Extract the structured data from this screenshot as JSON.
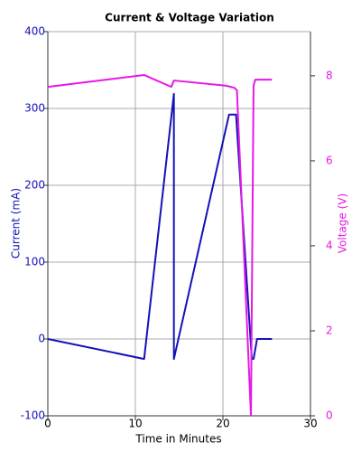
{
  "chart_data": {
    "type": "line",
    "title": "Current & Voltage Variation",
    "xlabel": "Time in Minutes",
    "ylabel": "Current (mA)",
    "y2label": "Voltage (V)",
    "xlim": [
      0,
      30
    ],
    "xticks": [
      0,
      10,
      20,
      30
    ],
    "ylim": [
      -100,
      400
    ],
    "yticks": [
      -100,
      0,
      100,
      200,
      300,
      400
    ],
    "y2lim": [
      0,
      9.04
    ],
    "y2ticks": [
      0,
      2,
      4,
      6,
      8
    ],
    "grid": true,
    "series": [
      {
        "name": "Current",
        "color": "#1212b8",
        "axis": "y",
        "x": [
          0,
          11,
          14.4,
          14.4,
          20.7,
          21.5,
          23.3,
          23.5,
          23.9,
          25.6
        ],
        "values": [
          0,
          -26,
          319,
          -26,
          292,
          292,
          -26,
          -26,
          0,
          0
        ]
      },
      {
        "name": "Voltage",
        "color": "#e619e6",
        "axis": "y2",
        "x": [
          0,
          11,
          14.1,
          14.4,
          20.3,
          21.3,
          21.6,
          23.2,
          23.5,
          23.7,
          25.6
        ],
        "values": [
          7.74,
          8.02,
          7.74,
          7.89,
          7.77,
          7.72,
          7.66,
          0,
          7.77,
          7.91,
          7.91
        ]
      }
    ]
  }
}
